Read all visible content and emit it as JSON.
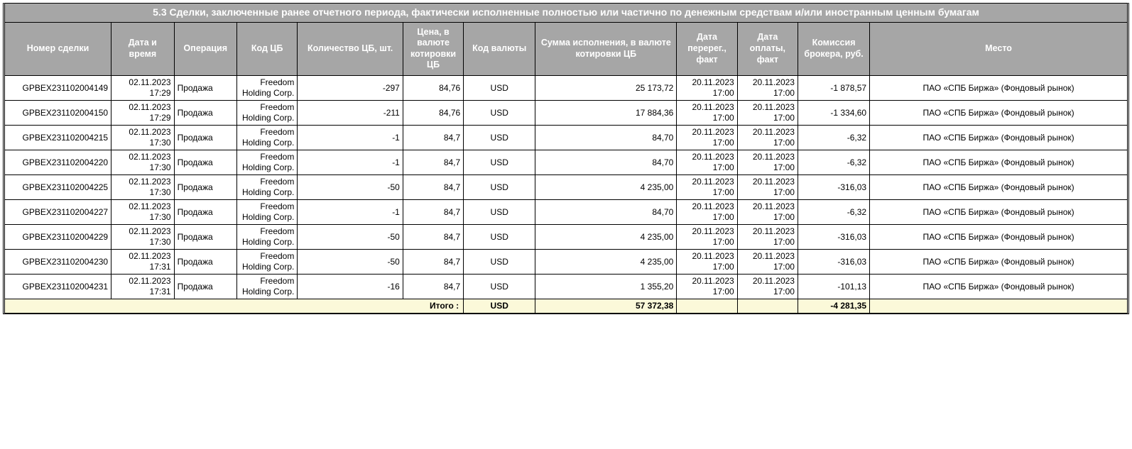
{
  "title": "5.3 Сделки, заключенные ранее отчетного периода, фактически исполненные полностью или частично по денежным средствам и/или иностранным ценным бумагам",
  "columns": [
    "Номер сделки",
    "Дата и время",
    "Операция",
    "Код ЦБ",
    "Количество ЦБ, шт.",
    "Цена, в валюте котировки ЦБ",
    "Код валюты",
    "Сумма исполнения, в валюте котировки ЦБ",
    "Дата перерег., факт",
    "Дата оплаты, факт",
    "Комиссия брокера, руб.",
    "Место"
  ],
  "rows": [
    {
      "deal": "GPBEX231102004149",
      "dt": "02.11.2023 17:29",
      "op": "Продажа",
      "code": "Freedom Holding Corp.",
      "qty": "-297",
      "price": "84,76",
      "ccy": "USD",
      "sum": "25 173,72",
      "rereg": "20.11.2023 17:00",
      "pay": "20.11.2023 17:00",
      "comm": "-1 878,57",
      "place": "ПАО «СПБ Биржа» (Фондовый рынок)"
    },
    {
      "deal": "GPBEX231102004150",
      "dt": "02.11.2023 17:29",
      "op": "Продажа",
      "code": "Freedom Holding Corp.",
      "qty": "-211",
      "price": "84,76",
      "ccy": "USD",
      "sum": "17 884,36",
      "rereg": "20.11.2023 17:00",
      "pay": "20.11.2023 17:00",
      "comm": "-1 334,60",
      "place": "ПАО «СПБ Биржа» (Фондовый рынок)"
    },
    {
      "deal": "GPBEX231102004215",
      "dt": "02.11.2023 17:30",
      "op": "Продажа",
      "code": "Freedom Holding Corp.",
      "qty": "-1",
      "price": "84,7",
      "ccy": "USD",
      "sum": "84,70",
      "rereg": "20.11.2023 17:00",
      "pay": "20.11.2023 17:00",
      "comm": "-6,32",
      "place": "ПАО «СПБ Биржа» (Фондовый рынок)"
    },
    {
      "deal": "GPBEX231102004220",
      "dt": "02.11.2023 17:30",
      "op": "Продажа",
      "code": "Freedom Holding Corp.",
      "qty": "-1",
      "price": "84,7",
      "ccy": "USD",
      "sum": "84,70",
      "rereg": "20.11.2023 17:00",
      "pay": "20.11.2023 17:00",
      "comm": "-6,32",
      "place": "ПАО «СПБ Биржа» (Фондовый рынок)"
    },
    {
      "deal": "GPBEX231102004225",
      "dt": "02.11.2023 17:30",
      "op": "Продажа",
      "code": "Freedom Holding Corp.",
      "qty": "-50",
      "price": "84,7",
      "ccy": "USD",
      "sum": "4 235,00",
      "rereg": "20.11.2023 17:00",
      "pay": "20.11.2023 17:00",
      "comm": "-316,03",
      "place": "ПАО «СПБ Биржа» (Фондовый рынок)"
    },
    {
      "deal": "GPBEX231102004227",
      "dt": "02.11.2023 17:30",
      "op": "Продажа",
      "code": "Freedom Holding Corp.",
      "qty": "-1",
      "price": "84,7",
      "ccy": "USD",
      "sum": "84,70",
      "rereg": "20.11.2023 17:00",
      "pay": "20.11.2023 17:00",
      "comm": "-6,32",
      "place": "ПАО «СПБ Биржа» (Фондовый рынок)"
    },
    {
      "deal": "GPBEX231102004229",
      "dt": "02.11.2023 17:30",
      "op": "Продажа",
      "code": "Freedom Holding Corp.",
      "qty": "-50",
      "price": "84,7",
      "ccy": "USD",
      "sum": "4 235,00",
      "rereg": "20.11.2023 17:00",
      "pay": "20.11.2023 17:00",
      "comm": "-316,03",
      "place": "ПАО «СПБ Биржа» (Фондовый рынок)"
    },
    {
      "deal": "GPBEX231102004230",
      "dt": "02.11.2023 17:31",
      "op": "Продажа",
      "code": "Freedom Holding Corp.",
      "qty": "-50",
      "price": "84,7",
      "ccy": "USD",
      "sum": "4 235,00",
      "rereg": "20.11.2023 17:00",
      "pay": "20.11.2023 17:00",
      "comm": "-316,03",
      "place": "ПАО «СПБ Биржа» (Фондовый рынок)"
    },
    {
      "deal": "GPBEX231102004231",
      "dt": "02.11.2023 17:31",
      "op": "Продажа",
      "code": "Freedom Holding Corp.",
      "qty": "-16",
      "price": "84,7",
      "ccy": "USD",
      "sum": "1 355,20",
      "rereg": "20.11.2023 17:00",
      "pay": "20.11.2023 17:00",
      "comm": "-101,13",
      "place": "ПАО «СПБ Биржа» (Фондовый рынок)"
    }
  ],
  "totals": {
    "label": "Итого :",
    "ccy": "USD",
    "sum": "57 372,38",
    "comm": "-4 281,35"
  },
  "style": {
    "header_bg": "#a6a6a6",
    "header_fg": "#ffffff",
    "total_bg": "#fbf9d9",
    "border_color": "#000000",
    "body_bg": "#ffffff",
    "font_family": "Verdana, Arial, sans-serif"
  }
}
